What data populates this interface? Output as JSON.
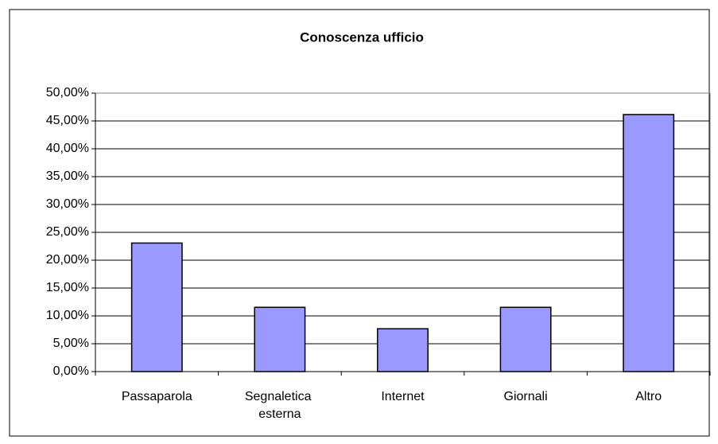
{
  "chart_data": {
    "type": "bar",
    "title": "Conoscenza ufficio",
    "categories": [
      "Passaparola",
      "Segnaletica esterna",
      "Internet",
      "Giornali",
      "Altro"
    ],
    "values": [
      23.08,
      11.54,
      7.69,
      11.54,
      46.15
    ],
    "color": "#9999ff",
    "ylim": [
      0,
      50
    ],
    "yticks": [
      {
        "value": 0,
        "label": "0,00%"
      },
      {
        "value": 5,
        "label": "5,00%"
      },
      {
        "value": 10,
        "label": "10,00%"
      },
      {
        "value": 15,
        "label": "15,00%"
      },
      {
        "value": 20,
        "label": "20,00%"
      },
      {
        "value": 25,
        "label": "25,00%"
      },
      {
        "value": 30,
        "label": "30,00%"
      },
      {
        "value": 35,
        "label": "35,00%"
      },
      {
        "value": 40,
        "label": "40,00%"
      },
      {
        "value": 45,
        "label": "45,00%"
      },
      {
        "value": 50,
        "label": "50,00%"
      }
    ],
    "grid": true
  }
}
